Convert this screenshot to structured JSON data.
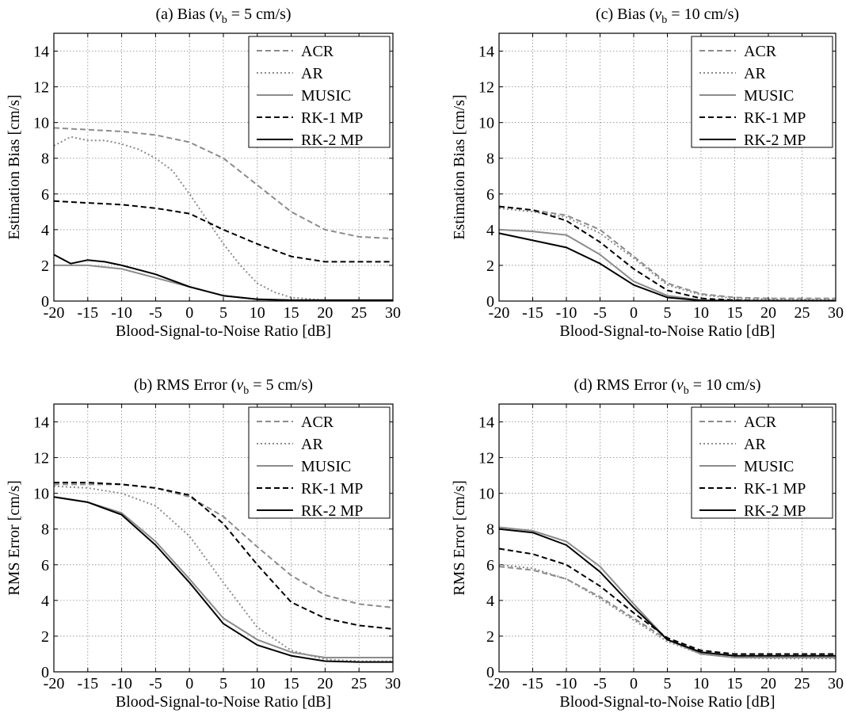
{
  "chart_data": [
    {
      "type": "line",
      "title_pre": "(a) Bias (",
      "title_var": "v",
      "title_sub": "b",
      "title_post": " = 5 cm/s)",
      "xlabel": "Blood-Signal-to-Noise Ratio [dB]",
      "ylabel": "Estimation Bias [cm/s]",
      "xlim": [
        -20,
        30
      ],
      "ylim": [
        0,
        15
      ],
      "xticks": [
        -20,
        -15,
        -10,
        -5,
        0,
        5,
        10,
        15,
        20,
        25,
        30
      ],
      "yticks": [
        0,
        2,
        4,
        6,
        8,
        10,
        12,
        14
      ],
      "grid": true,
      "legend_position": "top-right",
      "series": [
        {
          "name": "ACR",
          "color": "#8c8c8c",
          "dash": "dashed",
          "x": [
            -20,
            -15,
            -10,
            -5,
            0,
            5,
            10,
            15,
            20,
            25,
            30
          ],
          "y": [
            9.7,
            9.6,
            9.5,
            9.3,
            8.9,
            8.0,
            6.5,
            5.0,
            4.0,
            3.6,
            3.5
          ]
        },
        {
          "name": "AR",
          "color": "#8c8c8c",
          "dash": "dotted",
          "x": [
            -20,
            -17.5,
            -15,
            -12.5,
            -10,
            -7.5,
            -5,
            -2.5,
            0,
            2.5,
            5,
            7.5,
            10,
            12.5,
            15,
            20,
            25,
            30
          ],
          "y": [
            8.7,
            9.2,
            9.0,
            9.0,
            8.8,
            8.5,
            8.0,
            7.3,
            6.0,
            4.6,
            3.2,
            2.0,
            1.0,
            0.5,
            0.2,
            0.05,
            0.03,
            0.02
          ]
        },
        {
          "name": "MUSIC",
          "color": "#8c8c8c",
          "dash": "solid",
          "x": [
            -20,
            -15,
            -10,
            -5,
            0,
            5,
            10,
            15,
            20,
            25,
            30
          ],
          "y": [
            2.0,
            2.0,
            1.8,
            1.3,
            0.8,
            0.3,
            0.1,
            0.05,
            0.05,
            0.05,
            0.05
          ]
        },
        {
          "name": "RK-1 MP",
          "color": "#000000",
          "dash": "dashed",
          "x": [
            -20,
            -15,
            -10,
            -5,
            0,
            5,
            10,
            15,
            20,
            25,
            30
          ],
          "y": [
            5.6,
            5.5,
            5.4,
            5.2,
            4.9,
            4.0,
            3.2,
            2.5,
            2.2,
            2.2,
            2.2
          ]
        },
        {
          "name": "RK-2 MP",
          "color": "#000000",
          "dash": "solid",
          "x": [
            -20,
            -17.5,
            -15,
            -12.5,
            -10,
            -5,
            0,
            5,
            10,
            15,
            20,
            25,
            30
          ],
          "y": [
            2.6,
            2.1,
            2.3,
            2.2,
            2.0,
            1.5,
            0.8,
            0.3,
            0.1,
            0.05,
            0.05,
            0.05,
            0.05
          ]
        }
      ]
    },
    {
      "type": "line",
      "title_pre": "(c) Bias (",
      "title_var": "v",
      "title_sub": "b",
      "title_post": " = 10 cm/s)",
      "xlabel": "Blood-Signal-to-Noise Ratio [dB]",
      "ylabel": "Estimation Bias [cm/s]",
      "xlim": [
        -20,
        30
      ],
      "ylim": [
        0,
        15
      ],
      "xticks": [
        -20,
        -15,
        -10,
        -5,
        0,
        5,
        10,
        15,
        20,
        25,
        30
      ],
      "yticks": [
        0,
        2,
        4,
        6,
        8,
        10,
        12,
        14
      ],
      "grid": true,
      "legend_position": "top-right",
      "series": [
        {
          "name": "ACR",
          "color": "#8c8c8c",
          "dash": "dashed",
          "x": [
            -20,
            -15,
            -10,
            -5,
            0,
            5,
            10,
            15,
            20,
            25,
            30
          ],
          "y": [
            5.3,
            5.1,
            4.8,
            4.0,
            2.5,
            1.0,
            0.4,
            0.2,
            0.15,
            0.15,
            0.15
          ]
        },
        {
          "name": "AR",
          "color": "#8c8c8c",
          "dash": "dotted",
          "x": [
            -20,
            -15,
            -10,
            -5,
            0,
            5,
            10,
            15,
            20,
            25,
            30
          ],
          "y": [
            5.2,
            5.0,
            4.7,
            3.8,
            2.4,
            0.9,
            0.35,
            0.15,
            0.1,
            0.1,
            0.1
          ]
        },
        {
          "name": "MUSIC",
          "color": "#8c8c8c",
          "dash": "solid",
          "x": [
            -20,
            -15,
            -10,
            -5,
            0,
            5,
            10,
            15,
            20,
            25,
            30
          ],
          "y": [
            4.0,
            3.9,
            3.7,
            2.6,
            1.1,
            0.3,
            0.05,
            0.02,
            0.02,
            0.02,
            0.02
          ]
        },
        {
          "name": "RK-1 MP",
          "color": "#000000",
          "dash": "dashed",
          "x": [
            -20,
            -15,
            -10,
            -5,
            0,
            5,
            10,
            15,
            20,
            25,
            30
          ],
          "y": [
            5.3,
            5.1,
            4.5,
            3.3,
            1.8,
            0.6,
            0.15,
            0.05,
            0.02,
            0.02,
            0.02
          ]
        },
        {
          "name": "RK-2 MP",
          "color": "#000000",
          "dash": "solid",
          "x": [
            -20,
            -15,
            -10,
            -5,
            0,
            5,
            10,
            15,
            20,
            25,
            30
          ],
          "y": [
            3.8,
            3.4,
            3.0,
            2.1,
            0.9,
            0.2,
            0.03,
            0.02,
            0.02,
            0.02,
            0.02
          ]
        }
      ]
    },
    {
      "type": "line",
      "title_pre": "(b) RMS Error (",
      "title_var": "v",
      "title_sub": "b",
      "title_post": " = 5 cm/s)",
      "xlabel": "Blood-Signal-to-Noise Ratio [dB]",
      "ylabel": "RMS Error [cm/s]",
      "xlim": [
        -20,
        30
      ],
      "ylim": [
        0,
        15
      ],
      "xticks": [
        -20,
        -15,
        -10,
        -5,
        0,
        5,
        10,
        15,
        20,
        25,
        30
      ],
      "yticks": [
        0,
        2,
        4,
        6,
        8,
        10,
        12,
        14
      ],
      "grid": true,
      "legend_position": "top-right",
      "series": [
        {
          "name": "ACR",
          "color": "#8c8c8c",
          "dash": "dashed",
          "x": [
            -20,
            -15,
            -10,
            -5,
            0,
            5,
            10,
            15,
            20,
            25,
            30
          ],
          "y": [
            10.5,
            10.5,
            10.5,
            10.3,
            9.8,
            8.7,
            7.0,
            5.4,
            4.3,
            3.8,
            3.6
          ]
        },
        {
          "name": "AR",
          "color": "#8c8c8c",
          "dash": "dotted",
          "x": [
            -20,
            -15,
            -10,
            -5,
            0,
            5,
            10,
            15,
            20,
            25,
            30
          ],
          "y": [
            10.4,
            10.3,
            10.0,
            9.3,
            7.6,
            5.0,
            2.5,
            1.2,
            0.7,
            0.6,
            0.6
          ]
        },
        {
          "name": "MUSIC",
          "color": "#8c8c8c",
          "dash": "solid",
          "x": [
            -20,
            -15,
            -10,
            -5,
            0,
            5,
            10,
            15,
            20,
            25,
            30
          ],
          "y": [
            9.8,
            9.5,
            8.9,
            7.3,
            5.2,
            3.0,
            1.8,
            1.1,
            0.8,
            0.8,
            0.8
          ]
        },
        {
          "name": "RK-1 MP",
          "color": "#000000",
          "dash": "dashed",
          "x": [
            -20,
            -15,
            -10,
            -5,
            0,
            5,
            10,
            15,
            20,
            25,
            30
          ],
          "y": [
            10.6,
            10.6,
            10.5,
            10.3,
            9.9,
            8.3,
            6.0,
            3.9,
            3.0,
            2.6,
            2.4
          ]
        },
        {
          "name": "RK-2 MP",
          "color": "#000000",
          "dash": "solid",
          "x": [
            -20,
            -15,
            -10,
            -5,
            0,
            5,
            10,
            15,
            20,
            25,
            30
          ],
          "y": [
            9.8,
            9.5,
            8.8,
            7.1,
            5.0,
            2.7,
            1.5,
            0.9,
            0.6,
            0.55,
            0.55
          ]
        }
      ]
    },
    {
      "type": "line",
      "title_pre": "(d) RMS Error (",
      "title_var": "v",
      "title_sub": "b",
      "title_post": " = 10 cm/s)",
      "xlabel": "Blood-Signal-to-Noise Ratio [dB]",
      "ylabel": "RMS Error [cm/s]",
      "xlim": [
        -20,
        30
      ],
      "ylim": [
        0,
        15
      ],
      "xticks": [
        -20,
        -15,
        -10,
        -5,
        0,
        5,
        10,
        15,
        20,
        25,
        30
      ],
      "yticks": [
        0,
        2,
        4,
        6,
        8,
        10,
        12,
        14
      ],
      "grid": true,
      "legend_position": "top-right",
      "series": [
        {
          "name": "ACR",
          "color": "#8c8c8c",
          "dash": "dashed",
          "x": [
            -20,
            -15,
            -10,
            -5,
            0,
            5,
            10,
            15,
            20,
            25,
            30
          ],
          "y": [
            5.9,
            5.7,
            5.2,
            4.2,
            3.0,
            1.8,
            1.1,
            0.9,
            0.9,
            0.9,
            0.9
          ]
        },
        {
          "name": "AR",
          "color": "#8c8c8c",
          "dash": "dotted",
          "x": [
            -20,
            -15,
            -10,
            -5,
            0,
            5,
            10,
            15,
            20,
            25,
            30
          ],
          "y": [
            6.0,
            5.8,
            5.2,
            4.1,
            2.9,
            1.7,
            1.0,
            0.8,
            0.75,
            0.75,
            0.75
          ]
        },
        {
          "name": "MUSIC",
          "color": "#8c8c8c",
          "dash": "solid",
          "x": [
            -20,
            -15,
            -10,
            -5,
            0,
            5,
            10,
            15,
            20,
            25,
            30
          ],
          "y": [
            8.1,
            7.9,
            7.3,
            5.9,
            3.8,
            1.8,
            1.0,
            0.8,
            0.8,
            0.8,
            0.8
          ]
        },
        {
          "name": "RK-1 MP",
          "color": "#000000",
          "dash": "dashed",
          "x": [
            -20,
            -15,
            -10,
            -5,
            0,
            5,
            10,
            15,
            20,
            25,
            30
          ],
          "y": [
            6.9,
            6.6,
            6.0,
            4.8,
            3.3,
            1.9,
            1.2,
            1.0,
            1.0,
            1.0,
            1.0
          ]
        },
        {
          "name": "RK-2 MP",
          "color": "#000000",
          "dash": "solid",
          "x": [
            -20,
            -15,
            -10,
            -5,
            0,
            5,
            10,
            15,
            20,
            25,
            30
          ],
          "y": [
            8.0,
            7.8,
            7.1,
            5.6,
            3.6,
            1.8,
            1.1,
            0.9,
            0.9,
            0.9,
            0.9
          ]
        }
      ]
    }
  ]
}
